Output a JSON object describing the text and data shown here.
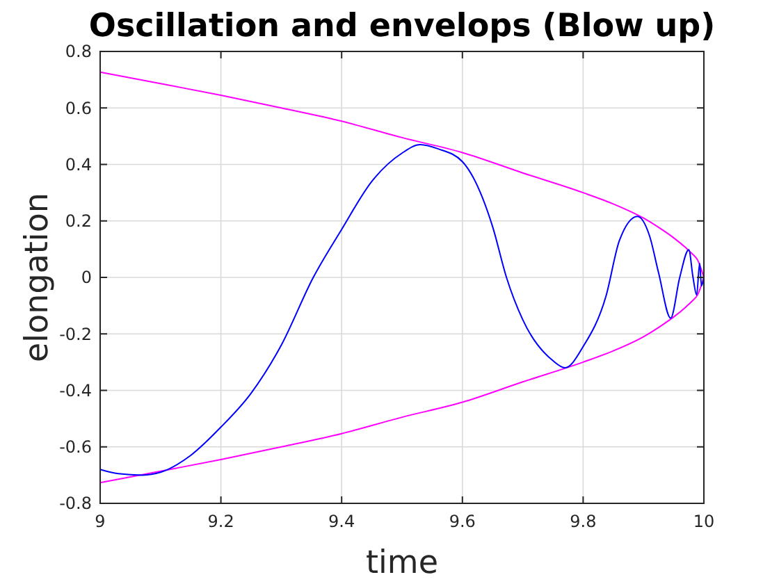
{
  "chart_data": {
    "type": "line",
    "title": "Oscillation and envelops (Blow up)",
    "xlabel": "time",
    "ylabel": "elongation",
    "xlim": [
      9,
      10
    ],
    "xticks": [
      9,
      9.2,
      9.4,
      9.6,
      9.8,
      10
    ],
    "ylim": [
      -0.8,
      0.8
    ],
    "yticks": [
      -0.8,
      -0.6,
      -0.4,
      -0.2,
      0,
      0.2,
      0.4,
      0.6,
      0.8
    ],
    "grid": true,
    "marker": "none",
    "line_style": "solid",
    "series": [
      {
        "color": "#ff00ff",
        "x": [
          9,
          9.1,
          9.2,
          9.3,
          9.4,
          9.5,
          9.6,
          9.7,
          9.8,
          9.85,
          9.9,
          9.93,
          9.95,
          9.97,
          9.98,
          9.99,
          10
        ],
        "values": [
          0.727,
          0.686,
          0.645,
          0.6,
          0.553,
          0.495,
          0.442,
          0.37,
          0.3,
          0.26,
          0.21,
          0.17,
          0.14,
          0.105,
          0.085,
          0.06,
          0
        ]
      },
      {
        "color": "#ff00ff",
        "x": [
          9,
          9.1,
          9.2,
          9.3,
          9.4,
          9.5,
          9.6,
          9.7,
          9.8,
          9.85,
          9.9,
          9.93,
          9.95,
          9.97,
          9.98,
          9.99,
          10
        ],
        "values": [
          -0.727,
          -0.686,
          -0.645,
          -0.6,
          -0.553,
          -0.495,
          -0.442,
          -0.37,
          -0.3,
          -0.26,
          -0.21,
          -0.17,
          -0.14,
          -0.105,
          -0.085,
          -0.06,
          0
        ]
      },
      {
        "color": "#0000ff",
        "x": [
          9,
          9.03,
          9.07,
          9.1,
          9.15,
          9.2,
          9.25,
          9.3,
          9.353,
          9.4,
          9.45,
          9.5,
          9.53,
          9.56,
          9.6,
          9.65,
          9.673,
          9.7,
          9.75,
          9.77,
          9.8,
          9.838,
          9.86,
          9.89,
          9.91,
          9.925,
          9.945,
          9.96,
          9.975,
          9.982,
          9.988,
          9.993,
          9.996,
          10
        ],
        "values": [
          -0.68,
          -0.695,
          -0.7,
          -0.69,
          -0.63,
          -0.53,
          -0.41,
          -0.24,
          0,
          0.17,
          0.34,
          0.44,
          0.47,
          0.455,
          0.41,
          0.18,
          0,
          -0.15,
          -0.295,
          -0.32,
          -0.245,
          -0.065,
          0.13,
          0.216,
          0.147,
          0.016,
          -0.144,
          0,
          0.098,
          0,
          -0.062,
          0.05,
          -0.03,
          0
        ]
      }
    ]
  }
}
